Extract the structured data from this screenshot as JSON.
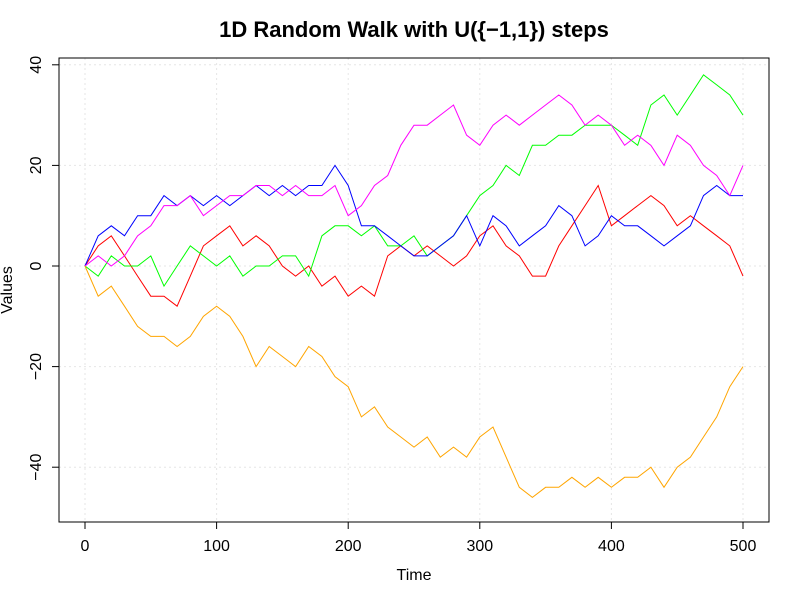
{
  "chart_data": {
    "type": "line",
    "title": "1D Random Walk with U({−1,1}) steps",
    "xlabel": "Time",
    "ylabel": "Values",
    "xlim": [
      0,
      500
    ],
    "ylim": [
      -49,
      42
    ],
    "x_ticks": [
      0,
      100,
      200,
      300,
      400,
      500
    ],
    "x_tick_labels": [
      "0",
      "100",
      "200",
      "300",
      "400",
      "500"
    ],
    "y_ticks": [
      -40,
      -20,
      0,
      20,
      40
    ],
    "y_tick_labels": [
      "−40",
      "−20",
      "0",
      "20",
      "40"
    ],
    "grid": true,
    "legend": "none",
    "series": [
      {
        "color": "#ff0000",
        "points": [
          [
            0,
            0
          ],
          [
            10,
            4
          ],
          [
            20,
            6
          ],
          [
            30,
            2
          ],
          [
            40,
            -2
          ],
          [
            50,
            -6
          ],
          [
            60,
            -6
          ],
          [
            70,
            -8
          ],
          [
            80,
            -2
          ],
          [
            90,
            4
          ],
          [
            100,
            6
          ],
          [
            110,
            8
          ],
          [
            120,
            4
          ],
          [
            130,
            6
          ],
          [
            140,
            4
          ],
          [
            150,
            0
          ],
          [
            160,
            -2
          ],
          [
            170,
            0
          ],
          [
            180,
            -4
          ],
          [
            190,
            -2
          ],
          [
            200,
            -6
          ],
          [
            210,
            -4
          ],
          [
            220,
            -6
          ],
          [
            230,
            2
          ],
          [
            240,
            4
          ],
          [
            250,
            2
          ],
          [
            260,
            4
          ],
          [
            270,
            2
          ],
          [
            280,
            0
          ],
          [
            290,
            2
          ],
          [
            300,
            6
          ],
          [
            310,
            8
          ],
          [
            320,
            4
          ],
          [
            330,
            2
          ],
          [
            340,
            -2
          ],
          [
            350,
            -2
          ],
          [
            360,
            4
          ],
          [
            370,
            8
          ],
          [
            380,
            12
          ],
          [
            390,
            16
          ],
          [
            400,
            8
          ],
          [
            410,
            10
          ],
          [
            420,
            12
          ],
          [
            430,
            14
          ],
          [
            440,
            12
          ],
          [
            450,
            8
          ],
          [
            460,
            10
          ],
          [
            470,
            8
          ],
          [
            480,
            6
          ],
          [
            490,
            4
          ],
          [
            500,
            -2
          ]
        ]
      },
      {
        "color": "#00ff00",
        "points": [
          [
            0,
            0
          ],
          [
            10,
            -2
          ],
          [
            20,
            2
          ],
          [
            30,
            0
          ],
          [
            40,
            0
          ],
          [
            50,
            2
          ],
          [
            60,
            -4
          ],
          [
            70,
            0
          ],
          [
            80,
            4
          ],
          [
            90,
            2
          ],
          [
            100,
            0
          ],
          [
            110,
            2
          ],
          [
            120,
            -2
          ],
          [
            130,
            0
          ],
          [
            140,
            0
          ],
          [
            150,
            2
          ],
          [
            160,
            2
          ],
          [
            170,
            -2
          ],
          [
            180,
            6
          ],
          [
            190,
            8
          ],
          [
            200,
            8
          ],
          [
            210,
            6
          ],
          [
            220,
            8
          ],
          [
            230,
            4
          ],
          [
            240,
            4
          ],
          [
            250,
            6
          ],
          [
            260,
            2
          ],
          [
            270,
            4
          ],
          [
            280,
            6
          ],
          [
            290,
            10
          ],
          [
            300,
            14
          ],
          [
            310,
            16
          ],
          [
            320,
            20
          ],
          [
            330,
            18
          ],
          [
            340,
            24
          ],
          [
            350,
            24
          ],
          [
            360,
            26
          ],
          [
            370,
            26
          ],
          [
            380,
            28
          ],
          [
            390,
            28
          ],
          [
            400,
            28
          ],
          [
            410,
            26
          ],
          [
            420,
            24
          ],
          [
            430,
            32
          ],
          [
            440,
            34
          ],
          [
            450,
            30
          ],
          [
            460,
            34
          ],
          [
            470,
            38
          ],
          [
            480,
            36
          ],
          [
            490,
            34
          ],
          [
            500,
            30
          ]
        ]
      },
      {
        "color": "#0000ff",
        "points": [
          [
            0,
            0
          ],
          [
            10,
            6
          ],
          [
            20,
            8
          ],
          [
            30,
            6
          ],
          [
            40,
            10
          ],
          [
            50,
            10
          ],
          [
            60,
            14
          ],
          [
            70,
            12
          ],
          [
            80,
            14
          ],
          [
            90,
            12
          ],
          [
            100,
            14
          ],
          [
            110,
            12
          ],
          [
            120,
            14
          ],
          [
            130,
            16
          ],
          [
            140,
            14
          ],
          [
            150,
            16
          ],
          [
            160,
            14
          ],
          [
            170,
            16
          ],
          [
            180,
            16
          ],
          [
            190,
            20
          ],
          [
            200,
            16
          ],
          [
            210,
            8
          ],
          [
            220,
            8
          ],
          [
            230,
            6
          ],
          [
            240,
            4
          ],
          [
            250,
            2
          ],
          [
            260,
            2
          ],
          [
            270,
            4
          ],
          [
            280,
            6
          ],
          [
            290,
            10
          ],
          [
            300,
            4
          ],
          [
            310,
            10
          ],
          [
            320,
            8
          ],
          [
            330,
            4
          ],
          [
            340,
            6
          ],
          [
            350,
            8
          ],
          [
            360,
            12
          ],
          [
            370,
            10
          ],
          [
            380,
            4
          ],
          [
            390,
            6
          ],
          [
            400,
            10
          ],
          [
            410,
            8
          ],
          [
            420,
            8
          ],
          [
            430,
            6
          ],
          [
            440,
            4
          ],
          [
            450,
            6
          ],
          [
            460,
            8
          ],
          [
            470,
            14
          ],
          [
            480,
            16
          ],
          [
            490,
            14
          ],
          [
            500,
            14
          ]
        ]
      },
      {
        "color": "#ff00ff",
        "points": [
          [
            0,
            0
          ],
          [
            10,
            2
          ],
          [
            20,
            0
          ],
          [
            30,
            2
          ],
          [
            40,
            6
          ],
          [
            50,
            8
          ],
          [
            60,
            12
          ],
          [
            70,
            12
          ],
          [
            80,
            14
          ],
          [
            90,
            10
          ],
          [
            100,
            12
          ],
          [
            110,
            14
          ],
          [
            120,
            14
          ],
          [
            130,
            16
          ],
          [
            140,
            16
          ],
          [
            150,
            14
          ],
          [
            160,
            16
          ],
          [
            170,
            14
          ],
          [
            180,
            14
          ],
          [
            190,
            16
          ],
          [
            200,
            10
          ],
          [
            210,
            12
          ],
          [
            220,
            16
          ],
          [
            230,
            18
          ],
          [
            240,
            24
          ],
          [
            250,
            28
          ],
          [
            260,
            28
          ],
          [
            270,
            30
          ],
          [
            280,
            32
          ],
          [
            290,
            26
          ],
          [
            300,
            24
          ],
          [
            310,
            28
          ],
          [
            320,
            30
          ],
          [
            330,
            28
          ],
          [
            340,
            30
          ],
          [
            350,
            32
          ],
          [
            360,
            34
          ],
          [
            370,
            32
          ],
          [
            380,
            28
          ],
          [
            390,
            30
          ],
          [
            400,
            28
          ],
          [
            410,
            24
          ],
          [
            420,
            26
          ],
          [
            430,
            24
          ],
          [
            440,
            20
          ],
          [
            450,
            26
          ],
          [
            460,
            24
          ],
          [
            470,
            20
          ],
          [
            480,
            18
          ],
          [
            490,
            14
          ],
          [
            500,
            20
          ]
        ]
      },
      {
        "color": "#ffa500",
        "points": [
          [
            0,
            0
          ],
          [
            10,
            -6
          ],
          [
            20,
            -4
          ],
          [
            30,
            -8
          ],
          [
            40,
            -12
          ],
          [
            50,
            -14
          ],
          [
            60,
            -14
          ],
          [
            70,
            -16
          ],
          [
            80,
            -14
          ],
          [
            90,
            -10
          ],
          [
            100,
            -8
          ],
          [
            110,
            -10
          ],
          [
            120,
            -14
          ],
          [
            130,
            -20
          ],
          [
            140,
            -16
          ],
          [
            150,
            -18
          ],
          [
            160,
            -20
          ],
          [
            170,
            -16
          ],
          [
            180,
            -18
          ],
          [
            190,
            -22
          ],
          [
            200,
            -24
          ],
          [
            210,
            -30
          ],
          [
            220,
            -28
          ],
          [
            230,
            -32
          ],
          [
            240,
            -34
          ],
          [
            250,
            -36
          ],
          [
            260,
            -34
          ],
          [
            270,
            -38
          ],
          [
            280,
            -36
          ],
          [
            290,
            -38
          ],
          [
            300,
            -34
          ],
          [
            310,
            -32
          ],
          [
            320,
            -38
          ],
          [
            330,
            -44
          ],
          [
            340,
            -46
          ],
          [
            350,
            -44
          ],
          [
            360,
            -44
          ],
          [
            370,
            -42
          ],
          [
            380,
            -44
          ],
          [
            390,
            -42
          ],
          [
            400,
            -44
          ],
          [
            410,
            -42
          ],
          [
            420,
            -42
          ],
          [
            430,
            -40
          ],
          [
            440,
            -44
          ],
          [
            450,
            -40
          ],
          [
            460,
            -38
          ],
          [
            470,
            -34
          ],
          [
            480,
            -30
          ],
          [
            490,
            -24
          ],
          [
            500,
            -20
          ]
        ]
      }
    ]
  }
}
